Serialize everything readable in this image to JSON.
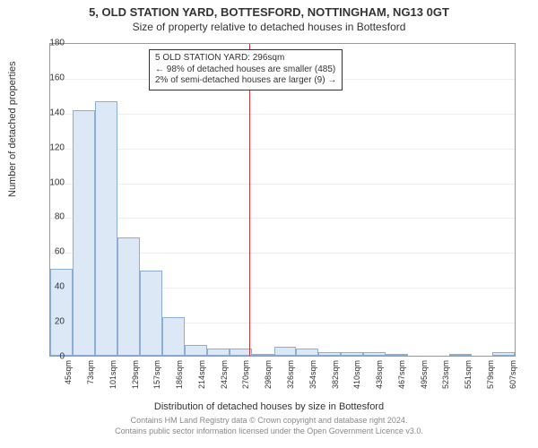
{
  "title_main": "5, OLD STATION YARD, BOTTESFORD, NOTTINGHAM, NG13 0GT",
  "title_sub": "Size of property relative to detached houses in Bottesford",
  "ylabel": "Number of detached properties",
  "xlabel": "Distribution of detached houses by size in Bottesford",
  "credit_line1": "Contains HM Land Registry data © Crown copyright and database right 2024.",
  "credit_line2": "Contains public sector information licensed under the Open Government Licence v3.0.",
  "annotation": {
    "line1": "5 OLD STATION YARD: 296sqm",
    "line2": "← 98% of detached houses are smaller (485)",
    "line3": "2% of semi-detached houses are larger (9) →"
  },
  "chart": {
    "type": "histogram",
    "background_color": "#ffffff",
    "plot_border_color": "#999999",
    "grid_color": "#eeeeee",
    "bar_fill": "#dce8f6",
    "bar_border": "#8aaed6",
    "ref_line_color": "#cc3333",
    "ylim": [
      0,
      180
    ],
    "ytick_step": 20,
    "yticks": [
      0,
      20,
      40,
      60,
      80,
      100,
      120,
      140,
      160,
      180
    ],
    "x_start": 45,
    "x_step": 28,
    "x_labels": [
      "45sqm",
      "73sqm",
      "101sqm",
      "129sqm",
      "157sqm",
      "186sqm",
      "214sqm",
      "242sqm",
      "270sqm",
      "298sqm",
      "326sqm",
      "354sqm",
      "382sqm",
      "410sqm",
      "438sqm",
      "467sqm",
      "495sqm",
      "523sqm",
      "551sqm",
      "579sqm",
      "607sqm"
    ],
    "values": [
      50,
      141,
      146,
      68,
      49,
      22,
      6,
      4,
      4,
      1,
      5,
      4,
      2,
      2,
      2,
      1,
      0,
      0,
      1,
      0,
      2
    ],
    "ref_value_x": 296,
    "tick_fontsize": 10,
    "label_fontsize": 11,
    "title_fontsize": 13,
    "xtick_rotation": -90,
    "annotation_border": "#333333",
    "annotation_bg": "#ffffff",
    "credit_color": "#888888"
  }
}
